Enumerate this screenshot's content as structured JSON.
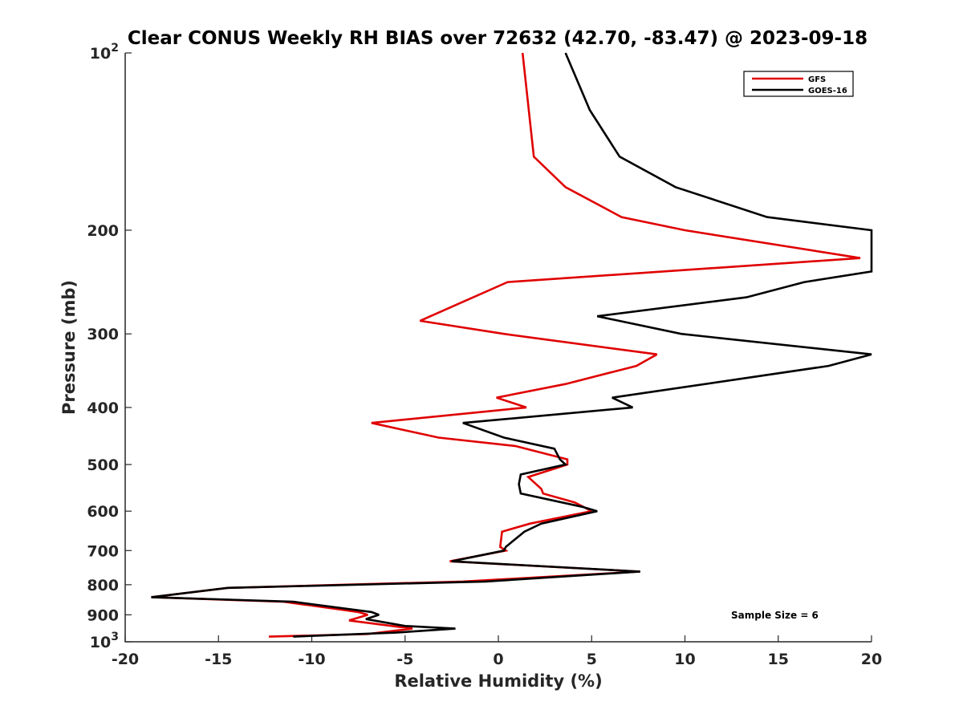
{
  "chart_data": {
    "type": "line",
    "title": "Clear CONUS Weekly RH BIAS over 72632 (42.70, -83.47) @ 2023-09-18",
    "xlabel": "Relative Humidity (%)",
    "ylabel": "Pressure (mb)",
    "xlim": [
      -20,
      20
    ],
    "ylim": [
      100,
      1000
    ],
    "y_scale": "log",
    "y_reversed": true,
    "grid": false,
    "legend_position": "top-right",
    "annotation": "Sample Size = 6",
    "x_ticks": [
      "-20",
      "-15",
      "-10",
      "-5",
      "0",
      "5",
      "10",
      "15",
      "20"
    ],
    "y_ticks": [
      {
        "value": 100,
        "base": "10",
        "exp": "2"
      },
      {
        "value": 200,
        "base": "200",
        "exp": ""
      },
      {
        "value": 300,
        "base": "300",
        "exp": ""
      },
      {
        "value": 400,
        "base": "400",
        "exp": ""
      },
      {
        "value": 500,
        "base": "500",
        "exp": ""
      },
      {
        "value": 600,
        "base": "600",
        "exp": ""
      },
      {
        "value": 700,
        "base": "700",
        "exp": ""
      },
      {
        "value": 800,
        "base": "800",
        "exp": ""
      },
      {
        "value": 900,
        "base": "900",
        "exp": ""
      },
      {
        "value": 1000,
        "base": "10",
        "exp": "3"
      }
    ],
    "series": [
      {
        "name": "GFS",
        "color": "#e00000",
        "points": [
          [
            1.3,
            100
          ],
          [
            1.9,
            150
          ],
          [
            3.6,
            169
          ],
          [
            6.6,
            190
          ],
          [
            10.0,
            200
          ],
          [
            19.4,
            223
          ],
          [
            0.5,
            245
          ],
          [
            -4.2,
            285
          ],
          [
            0.3,
            300
          ],
          [
            8.5,
            325
          ],
          [
            7.4,
            340
          ],
          [
            3.6,
            365
          ],
          [
            -0.1,
            385
          ],
          [
            1.5,
            400
          ],
          [
            -6.8,
            425
          ],
          [
            -3.2,
            450
          ],
          [
            0.9,
            465
          ],
          [
            3.7,
            490
          ],
          [
            3.7,
            500
          ],
          [
            1.6,
            525
          ],
          [
            2.3,
            550
          ],
          [
            2.4,
            560
          ],
          [
            4.1,
            580
          ],
          [
            5.0,
            600
          ],
          [
            1.7,
            630
          ],
          [
            0.2,
            650
          ],
          [
            0.1,
            690
          ],
          [
            0.4,
            700
          ],
          [
            -2.6,
            730
          ],
          [
            7.6,
            760
          ],
          [
            -1.9,
            790
          ],
          [
            -14.5,
            810
          ],
          [
            -18.6,
            840
          ],
          [
            -11.5,
            855
          ],
          [
            -7.5,
            890
          ],
          [
            -7.0,
            900
          ],
          [
            -8.0,
            920
          ],
          [
            -4.6,
            950
          ],
          [
            -7.0,
            970
          ],
          [
            -12.3,
            980
          ]
        ]
      },
      {
        "name": "GOES-16",
        "color": "#000000",
        "points": [
          [
            3.6,
            100
          ],
          [
            4.9,
            125
          ],
          [
            6.5,
            150
          ],
          [
            9.5,
            169
          ],
          [
            14.4,
            190
          ],
          [
            20.0,
            200
          ],
          [
            20.0,
            235
          ],
          [
            16.4,
            245
          ],
          [
            13.3,
            260
          ],
          [
            5.3,
            280
          ],
          [
            9.8,
            300
          ],
          [
            20.0,
            325
          ],
          [
            17.7,
            340
          ],
          [
            6.1,
            385
          ],
          [
            7.2,
            400
          ],
          [
            -1.9,
            425
          ],
          [
            0.3,
            450
          ],
          [
            3.0,
            470
          ],
          [
            3.3,
            490
          ],
          [
            3.6,
            500
          ],
          [
            1.2,
            520
          ],
          [
            1.1,
            540
          ],
          [
            1.2,
            560
          ],
          [
            4.5,
            590
          ],
          [
            5.3,
            600
          ],
          [
            2.3,
            630
          ],
          [
            1.4,
            650
          ],
          [
            0.4,
            690
          ],
          [
            0.3,
            700
          ],
          [
            -2.5,
            730
          ],
          [
            7.6,
            760
          ],
          [
            -0.7,
            790
          ],
          [
            -14.5,
            810
          ],
          [
            -18.6,
            840
          ],
          [
            -11.0,
            855
          ],
          [
            -6.8,
            890
          ],
          [
            -6.4,
            900
          ],
          [
            -7.1,
            915
          ],
          [
            -5.0,
            940
          ],
          [
            -2.3,
            950
          ],
          [
            -5.5,
            965
          ],
          [
            -11.0,
            980
          ]
        ]
      }
    ]
  }
}
